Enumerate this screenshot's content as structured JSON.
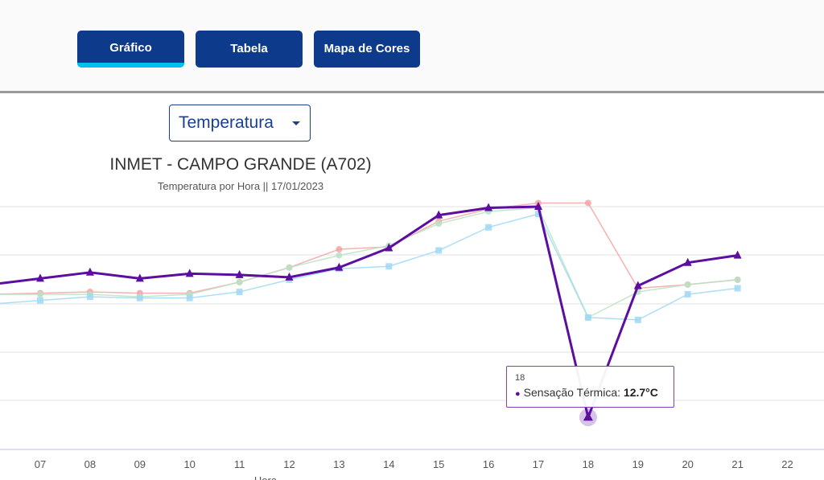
{
  "tabs": [
    {
      "label": "Gráfico",
      "active": true
    },
    {
      "label": "Tabela",
      "active": false
    },
    {
      "label": "Mapa de Cores",
      "active": false
    }
  ],
  "variable_select": {
    "value": "Temperatura"
  },
  "colors": {
    "tab_bg": "#0e3a8c",
    "tab_active_underline": "#00c0f0",
    "sensacao": "#5b0ea0",
    "temperatura": "#f4a3a3",
    "orvalho": "#b9e3c6",
    "outro": "#9fd8f4"
  },
  "tooltip": {
    "hour": "18",
    "label": "Sensação Térmica:",
    "value": "12.7°C"
  },
  "chart_data": {
    "type": "line",
    "title": "INMET - CAMPO GRANDE (A702)",
    "subtitle": "Temperatura por Hora || 17/01/2023",
    "xlabel": "Hora",
    "ylabel": "",
    "x": [
      "07",
      "08",
      "09",
      "10",
      "11",
      "12",
      "13",
      "14",
      "15",
      "16",
      "17",
      "18",
      "19",
      "20",
      "21",
      "22"
    ],
    "ylim": [
      10,
      30
    ],
    "grid": true,
    "series": [
      {
        "key": "temperatura",
        "values": [
          22.9,
          23.0,
          22.9,
          22.9,
          23.8,
          25.0,
          26.5,
          26.7,
          28.8,
          29.8,
          30.3,
          30.3,
          23.3,
          23.6,
          24.0,
          null
        ],
        "marker": "circle"
      },
      {
        "key": "orvalho",
        "values": [
          22.8,
          22.8,
          22.6,
          22.8,
          23.8,
          25.0,
          26.0,
          26.8,
          28.6,
          29.6,
          29.9,
          20.9,
          23.0,
          23.6,
          24.0,
          null
        ],
        "marker": "circle"
      },
      {
        "key": "outro",
        "values": [
          22.3,
          22.6,
          22.5,
          22.5,
          23.0,
          24.0,
          24.9,
          25.1,
          26.4,
          28.3,
          29.4,
          20.9,
          20.7,
          22.8,
          23.3,
          null
        ],
        "marker": "square"
      },
      {
        "name": "Sensação Térmica",
        "key": "sensacao",
        "values": [
          24.1,
          24.6,
          24.1,
          24.5,
          24.4,
          24.2,
          25.0,
          26.6,
          29.3,
          29.9,
          30.0,
          12.7,
          23.5,
          25.4,
          26.0,
          null
        ],
        "marker": "triangle"
      }
    ]
  }
}
